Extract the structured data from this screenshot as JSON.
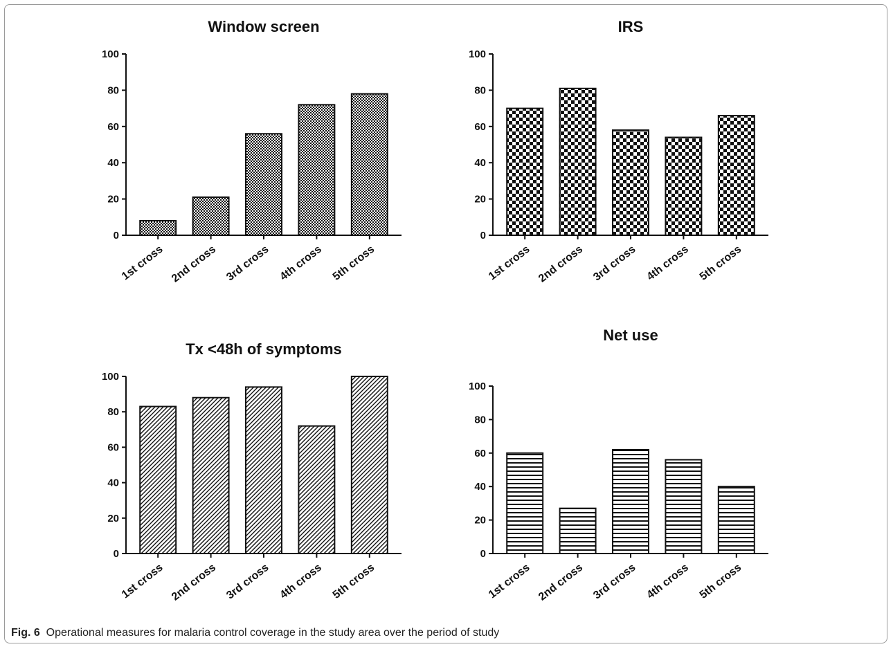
{
  "figure": {
    "caption_label": "Fig. 6",
    "caption_text": "Operational measures for malaria control coverage in the study area over the period of study"
  },
  "chart_data": [
    {
      "type": "bar",
      "title": "Window screen",
      "categories": [
        "1st cross",
        "2nd cross",
        "3rd cross",
        "4th cross",
        "5th cross"
      ],
      "values": [
        8,
        21,
        56,
        72,
        78
      ],
      "ylim": [
        0,
        100
      ],
      "yticks": [
        0,
        20,
        40,
        60,
        80,
        100
      ],
      "pattern": "fine-checker",
      "xlabel": "",
      "ylabel": "",
      "grid": false
    },
    {
      "type": "bar",
      "title": "IRS",
      "categories": [
        "1st cross",
        "2nd cross",
        "3rd cross",
        "4th cross",
        "5th cross"
      ],
      "values": [
        70,
        81,
        58,
        54,
        66
      ],
      "ylim": [
        0,
        100
      ],
      "yticks": [
        0,
        20,
        40,
        60,
        80,
        100
      ],
      "pattern": "checkerboard",
      "xlabel": "",
      "ylabel": "",
      "grid": false
    },
    {
      "type": "bar",
      "title": "Tx <48h of symptoms",
      "categories": [
        "1st cross",
        "2nd cross",
        "3rd cross",
        "4th cross",
        "5th cross"
      ],
      "values": [
        83,
        88,
        94,
        72,
        100
      ],
      "ylim": [
        0,
        100
      ],
      "yticks": [
        0,
        20,
        40,
        60,
        80,
        100
      ],
      "pattern": "diagonal-hatch",
      "xlabel": "",
      "ylabel": "",
      "grid": false
    },
    {
      "type": "bar",
      "title": "Net use",
      "categories": [
        "1st cross",
        "2nd cross",
        "3rd cross",
        "4th cross",
        "5th cross"
      ],
      "values": [
        60,
        27,
        62,
        56,
        40
      ],
      "ylim": [
        0,
        100
      ],
      "yticks": [
        0,
        20,
        40,
        60,
        80,
        100
      ],
      "pattern": "horizontal-stripes",
      "xlabel": "",
      "ylabel": "",
      "grid": false
    }
  ]
}
